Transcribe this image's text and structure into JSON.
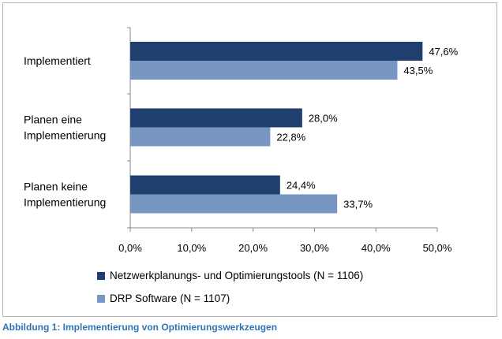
{
  "chart_data": {
    "type": "bar",
    "orientation": "horizontal",
    "categories": [
      "Implementiert",
      "Planen eine Implementierung",
      "Planen keine Implementierung"
    ],
    "category_lines": [
      [
        "Implementiert"
      ],
      [
        "Planen eine",
        "Implementierung"
      ],
      [
        "Planen keine",
        "Implementierung"
      ]
    ],
    "series": [
      {
        "name": "Netzwerkplanungs- und Optimierungstools (N = 1106)",
        "color": "#1f3f6e",
        "values": [
          47.6,
          28.0,
          24.4
        ],
        "labels": [
          "47,6%",
          "28,0%",
          "24,4%"
        ]
      },
      {
        "name": "DRP Software (N = 1107)",
        "color": "#7796c1",
        "values": [
          43.5,
          22.8,
          33.7
        ],
        "labels": [
          "43,5%",
          "22,8%",
          "33,7%"
        ]
      }
    ],
    "xlim": [
      0,
      50
    ],
    "xticks": [
      0,
      10,
      20,
      30,
      40,
      50
    ],
    "xtick_labels": [
      "0,0%",
      "10,0%",
      "20,0%",
      "30,0%",
      "40,0%",
      "50,0%"
    ],
    "legend_position": "bottom",
    "grid": false
  },
  "caption": "Abbildung 1: Implementierung von Optimierungswerkzeugen"
}
